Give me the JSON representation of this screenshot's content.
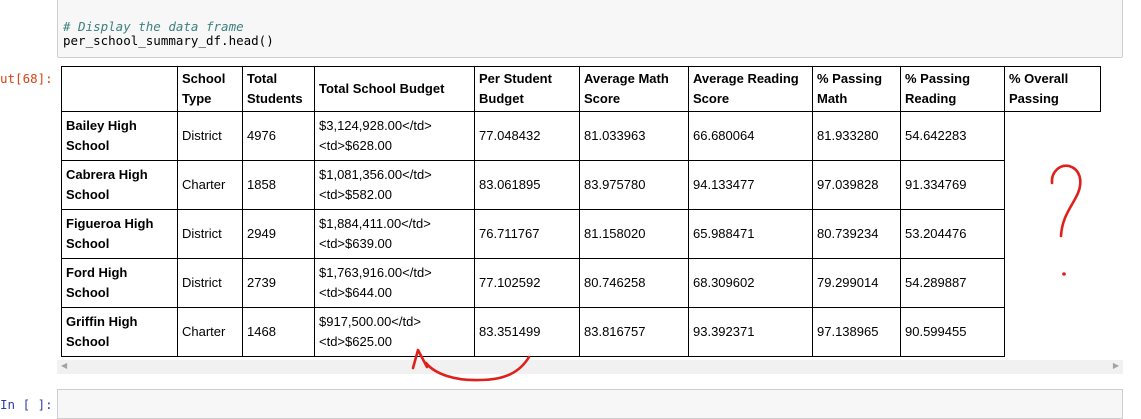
{
  "code_cell": {
    "comment": "# Display the data frame",
    "code": "per_school_summary_df.head()"
  },
  "output_prompt": "ut[68]:",
  "input_prompt": "In [ ]:",
  "table": {
    "columns": [
      {
        "id": "index",
        "label": ""
      },
      {
        "id": "school_type",
        "label": "School Type"
      },
      {
        "id": "total_students",
        "label": "Total Students"
      },
      {
        "id": "total_school_budget",
        "label": "Total School Budget"
      },
      {
        "id": "per_student_budget",
        "label": "Per Student Budget"
      },
      {
        "id": "average_math_score",
        "label": "Average Math Score"
      },
      {
        "id": "average_reading_score",
        "label": "Average Reading Score"
      },
      {
        "id": "passing_math",
        "label": "% Passing Math"
      },
      {
        "id": "passing_reading",
        "label": "% Passing Reading"
      },
      {
        "id": "overall_passing",
        "label": "% Overall Passing"
      }
    ],
    "rows": [
      {
        "school": "Bailey High School",
        "type": "District",
        "students": "4976",
        "budget_line1": "$3,124,928.00</td>",
        "budget_line2": "<td>$628.00",
        "per_student": "77.048432",
        "math": "81.033963",
        "reading": "66.680064",
        "pass_math": "81.933280",
        "pass_reading": "54.642283"
      },
      {
        "school": "Cabrera High School",
        "type": "Charter",
        "students": "1858",
        "budget_line1": "$1,081,356.00</td>",
        "budget_line2": "<td>$582.00",
        "per_student": "83.061895",
        "math": "83.975780",
        "reading": "94.133477",
        "pass_math": "97.039828",
        "pass_reading": "91.334769"
      },
      {
        "school": "Figueroa High School",
        "type": "District",
        "students": "2949",
        "budget_line1": "$1,884,411.00</td>",
        "budget_line2": "<td>$639.00",
        "per_student": "76.711767",
        "math": "81.158020",
        "reading": "65.988471",
        "pass_math": "80.739234",
        "pass_reading": "53.204476"
      },
      {
        "school": "Ford High School",
        "type": "District",
        "students": "2739",
        "budget_line1": "$1,763,916.00</td>",
        "budget_line2": "<td>$644.00",
        "per_student": "77.102592",
        "math": "80.746258",
        "reading": "68.309602",
        "pass_math": "79.299014",
        "pass_reading": "54.289887"
      },
      {
        "school": "Griffin High School",
        "type": "Charter",
        "students": "1468",
        "budget_line1": "$917,500.00</td>",
        "budget_line2": "<td>$625.00",
        "per_student": "83.351499",
        "math": "83.816757",
        "reading": "93.392371",
        "pass_math": "97.138965",
        "pass_reading": "90.599455"
      }
    ]
  },
  "annotation": {
    "color": "#e0201b",
    "marks": [
      "question-mark",
      "curved-arrow"
    ]
  },
  "icons": {
    "scroll_left": "scroll-left-arrow-icon",
    "scroll_right": "scroll-right-arrow-icon"
  }
}
